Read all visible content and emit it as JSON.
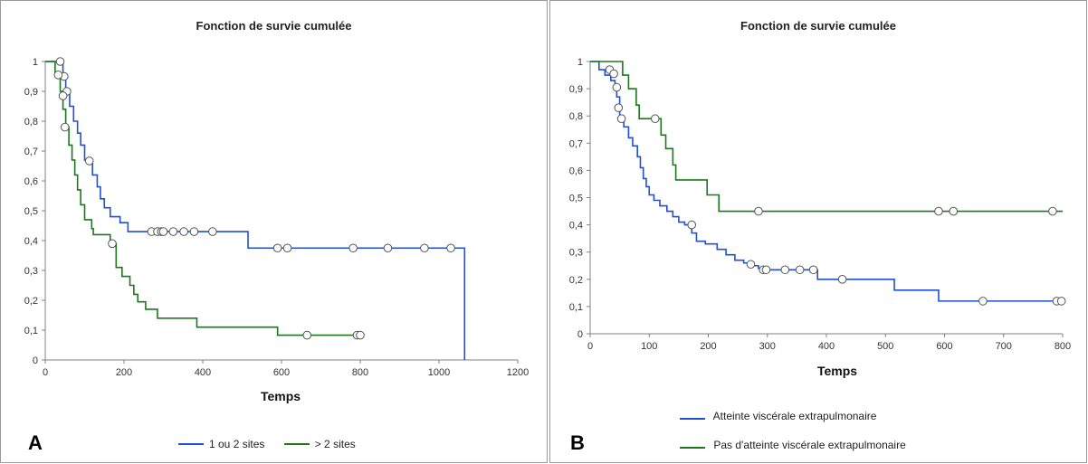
{
  "colors": {
    "series_blue": "#1f4fd6",
    "series_green": "#1a7a1a",
    "axis": "#808080"
  },
  "panel_a": {
    "label": "A"
  },
  "panel_b": {
    "label": "B"
  },
  "chart_data": [
    {
      "type": "line",
      "step": true,
      "title": "Fonction de survie cumulée",
      "xlabel": "Temps",
      "ylabel": "",
      "xlim": [
        0,
        1200
      ],
      "ylim": [
        0,
        1
      ],
      "x_ticks": [
        "0",
        "200",
        "400",
        "600",
        "800",
        "1000",
        "1200"
      ],
      "y_ticks": [
        "0",
        "0,1",
        "0,2",
        "0,3",
        "0,4",
        "0,5",
        "0,6",
        "0,7",
        "0,8",
        "0,9",
        "1"
      ],
      "legend_position": "bottom",
      "series": [
        {
          "name": "1 ou 2 sites",
          "color": "#1f4fd6",
          "steps": [
            [
              0,
              1
            ],
            [
              40,
              1
            ],
            [
              45,
              0.95
            ],
            [
              52,
              0.9
            ],
            [
              62,
              0.85
            ],
            [
              72,
              0.8
            ],
            [
              82,
              0.76
            ],
            [
              90,
              0.72
            ],
            [
              100,
              0.67
            ],
            [
              110,
              0.67
            ],
            [
              120,
              0.62
            ],
            [
              132,
              0.58
            ],
            [
              140,
              0.54
            ],
            [
              150,
              0.51
            ],
            [
              165,
              0.48
            ],
            [
              190,
              0.46
            ],
            [
              210,
              0.43
            ],
            [
              515,
              0.43
            ],
            [
              515,
              0.375
            ],
            [
              1065,
              0.375
            ],
            [
              1065,
              0
            ]
          ],
          "censored": [
            [
              38,
              1
            ],
            [
              48,
              0.95
            ],
            [
              55,
              0.9
            ],
            [
              112,
              0.667
            ],
            [
              270,
              0.43
            ],
            [
              285,
              0.43
            ],
            [
              295,
              0.43
            ],
            [
              300,
              0.43
            ],
            [
              325,
              0.43
            ],
            [
              352,
              0.43
            ],
            [
              378,
              0.43
            ],
            [
              425,
              0.43
            ],
            [
              590,
              0.375
            ],
            [
              615,
              0.375
            ],
            [
              782,
              0.375
            ],
            [
              870,
              0.375
            ],
            [
              963,
              0.375
            ],
            [
              1030,
              0.375
            ]
          ]
        },
        {
          "name": "> 2 sites",
          "color": "#1a7a1a",
          "steps": [
            [
              0,
              1
            ],
            [
              20,
              1
            ],
            [
              25,
              0.95
            ],
            [
              38,
              0.9
            ],
            [
              45,
              0.84
            ],
            [
              52,
              0.78
            ],
            [
              60,
              0.72
            ],
            [
              68,
              0.67
            ],
            [
              75,
              0.62
            ],
            [
              82,
              0.57
            ],
            [
              90,
              0.52
            ],
            [
              100,
              0.47
            ],
            [
              118,
              0.44
            ],
            [
              122,
              0.42
            ],
            [
              165,
              0.39
            ],
            [
              180,
              0.31
            ],
            [
              195,
              0.28
            ],
            [
              215,
              0.25
            ],
            [
              225,
              0.22
            ],
            [
              235,
              0.195
            ],
            [
              255,
              0.17
            ],
            [
              285,
              0.14
            ],
            [
              385,
              0.11
            ],
            [
              590,
              0.083
            ],
            [
              800,
              0.083
            ]
          ],
          "censored": [
            [
              33,
              0.955
            ],
            [
              45,
              0.885
            ],
            [
              50,
              0.78
            ],
            [
              170,
              0.39
            ],
            [
              665,
              0.083
            ],
            [
              792,
              0.083
            ],
            [
              800,
              0.083
            ]
          ]
        }
      ]
    },
    {
      "type": "line",
      "step": true,
      "title": "Fonction de survie cumulée",
      "xlabel": "Temps",
      "ylabel": "",
      "xlim": [
        0,
        800
      ],
      "ylim": [
        0,
        1
      ],
      "x_ticks": [
        "0",
        "100",
        "200",
        "300",
        "400",
        "500",
        "600",
        "700",
        "800"
      ],
      "y_ticks": [
        "0",
        "0,1",
        "0,2",
        "0,3",
        "0,4",
        "0,5",
        "0,6",
        "0,7",
        "0,8",
        "0,9",
        "1"
      ],
      "legend_position": "bottom",
      "series": [
        {
          "name": "Atteinte viscérale extrapulmonaire",
          "color": "#1f4fd6",
          "steps": [
            [
              0,
              1
            ],
            [
              12,
              1
            ],
            [
              15,
              0.97
            ],
            [
              25,
              0.95
            ],
            [
              35,
              0.93
            ],
            [
              42,
              0.91
            ],
            [
              45,
              0.87
            ],
            [
              50,
              0.8
            ],
            [
              57,
              0.76
            ],
            [
              65,
              0.72
            ],
            [
              72,
              0.69
            ],
            [
              80,
              0.65
            ],
            [
              85,
              0.61
            ],
            [
              90,
              0.57
            ],
            [
              95,
              0.54
            ],
            [
              100,
              0.51
            ],
            [
              108,
              0.49
            ],
            [
              118,
              0.47
            ],
            [
              130,
              0.45
            ],
            [
              140,
              0.43
            ],
            [
              150,
              0.41
            ],
            [
              160,
              0.4
            ],
            [
              172,
              0.37
            ],
            [
              180,
              0.34
            ],
            [
              195,
              0.33
            ],
            [
              215,
              0.31
            ],
            [
              230,
              0.29
            ],
            [
              245,
              0.27
            ],
            [
              260,
              0.26
            ],
            [
              275,
              0.25
            ],
            [
              285,
              0.24
            ],
            [
              300,
              0.235
            ],
            [
              385,
              0.2
            ],
            [
              515,
              0.16
            ],
            [
              590,
              0.12
            ],
            [
              800,
              0.12
            ]
          ],
          "censored": [
            [
              33,
              0.97
            ],
            [
              40,
              0.955
            ],
            [
              45,
              0.905
            ],
            [
              48,
              0.83
            ],
            [
              53,
              0.79
            ],
            [
              172,
              0.4
            ],
            [
              272,
              0.255
            ],
            [
              293,
              0.235
            ],
            [
              298,
              0.235
            ],
            [
              330,
              0.235
            ],
            [
              355,
              0.235
            ],
            [
              378,
              0.235
            ],
            [
              427,
              0.2
            ],
            [
              665,
              0.12
            ],
            [
              790,
              0.12
            ],
            [
              798,
              0.12
            ]
          ]
        },
        {
          "name": "Pas d'atteinte viscérale extrapulmonaire",
          "color": "#1a7a1a",
          "steps": [
            [
              0,
              1
            ],
            [
              50,
              1
            ],
            [
              55,
              0.95
            ],
            [
              65,
              0.9
            ],
            [
              78,
              0.84
            ],
            [
              83,
              0.79
            ],
            [
              120,
              0.73
            ],
            [
              128,
              0.68
            ],
            [
              140,
              0.62
            ],
            [
              145,
              0.565
            ],
            [
              198,
              0.51
            ],
            [
              218,
              0.45
            ],
            [
              800,
              0.45
            ]
          ],
          "censored": [
            [
              110,
              0.79
            ],
            [
              285,
              0.45
            ],
            [
              590,
              0.45
            ],
            [
              615,
              0.45
            ],
            [
              783,
              0.45
            ]
          ]
        }
      ]
    }
  ]
}
